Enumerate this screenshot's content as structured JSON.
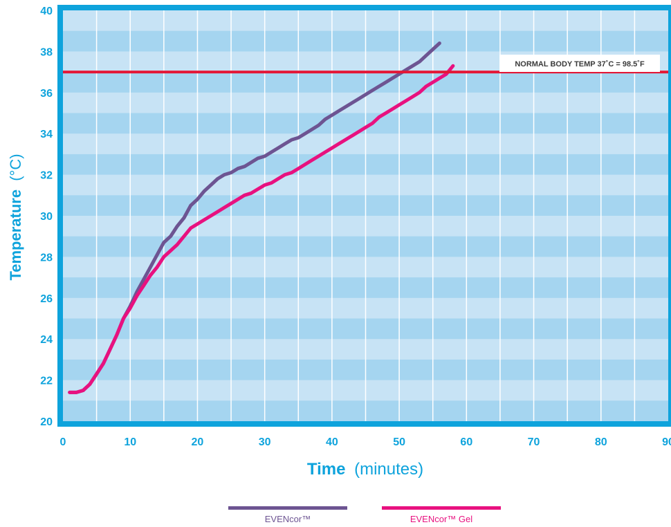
{
  "chart_data": {
    "type": "line",
    "title": "",
    "xlabel_bold": "Time",
    "xlabel_rest": "(minutes)",
    "ylabel_bold": "Temperature",
    "ylabel_rest": "(°C)",
    "xlim": [
      0,
      90
    ],
    "ylim": [
      20,
      40
    ],
    "x_ticks": [
      "0",
      "10",
      "20",
      "30",
      "40",
      "50",
      "60",
      "70",
      "80",
      "90"
    ],
    "y_ticks": [
      "20",
      "22",
      "24",
      "26",
      "28",
      "30",
      "32",
      "34",
      "36",
      "38",
      "40"
    ],
    "grid": true,
    "reference_line": {
      "y": 37,
      "label": "NORMAL BODY TEMP 37˚C = 98.5˚F",
      "color": "#e31837"
    },
    "series": [
      {
        "name": "EVENcor™",
        "color": "#6d5492",
        "x": [
          1,
          2,
          3,
          4,
          5,
          6,
          7,
          8,
          9,
          10,
          11,
          12,
          13,
          14,
          15,
          16,
          17,
          18,
          19,
          20,
          21,
          22,
          23,
          24,
          25,
          26,
          27,
          28,
          29,
          30,
          31,
          32,
          33,
          34,
          35,
          36,
          37,
          38,
          39,
          40,
          41,
          42,
          43,
          44,
          45,
          46,
          47,
          48,
          49,
          50,
          51,
          52,
          53,
          54,
          55,
          56
        ],
        "values": [
          21.4,
          21.4,
          21.5,
          21.8,
          22.3,
          22.8,
          23.5,
          24.2,
          25.0,
          25.6,
          26.3,
          26.9,
          27.5,
          28.1,
          28.7,
          29.0,
          29.5,
          29.9,
          30.5,
          30.8,
          31.2,
          31.5,
          31.8,
          32.0,
          32.1,
          32.3,
          32.4,
          32.6,
          32.8,
          32.9,
          33.1,
          33.3,
          33.5,
          33.7,
          33.8,
          34.0,
          34.2,
          34.4,
          34.7,
          34.9,
          35.1,
          35.3,
          35.5,
          35.7,
          35.9,
          36.1,
          36.3,
          36.5,
          36.7,
          36.9,
          37.1,
          37.3,
          37.5,
          37.8,
          38.1,
          38.4
        ]
      },
      {
        "name": "EVENcor™ Gel",
        "color": "#e8117f",
        "x": [
          1,
          2,
          3,
          4,
          5,
          6,
          7,
          8,
          9,
          10,
          11,
          12,
          13,
          14,
          15,
          16,
          17,
          18,
          19,
          20,
          21,
          22,
          23,
          24,
          25,
          26,
          27,
          28,
          29,
          30,
          31,
          32,
          33,
          34,
          35,
          36,
          37,
          38,
          39,
          40,
          41,
          42,
          43,
          44,
          45,
          46,
          47,
          48,
          49,
          50,
          51,
          52,
          53,
          54,
          55,
          56,
          57,
          58
        ],
        "values": [
          21.4,
          21.4,
          21.5,
          21.8,
          22.3,
          22.8,
          23.5,
          24.2,
          25.0,
          25.5,
          26.1,
          26.6,
          27.1,
          27.5,
          28.0,
          28.3,
          28.6,
          29.0,
          29.4,
          29.6,
          29.8,
          30.0,
          30.2,
          30.4,
          30.6,
          30.8,
          31.0,
          31.1,
          31.3,
          31.5,
          31.6,
          31.8,
          32.0,
          32.1,
          32.3,
          32.5,
          32.7,
          32.9,
          33.1,
          33.3,
          33.5,
          33.7,
          33.9,
          34.1,
          34.3,
          34.5,
          34.8,
          35.0,
          35.2,
          35.4,
          35.6,
          35.8,
          36.0,
          36.3,
          36.5,
          36.7,
          36.9,
          37.3
        ]
      }
    ],
    "legend_position": "bottom-center"
  },
  "colors": {
    "frame": "#0ea3dc",
    "band_light": "#c7e3f5",
    "band_dark": "#a5d5f0",
    "grid_line": "#ffffff",
    "axis_text": "#0ea3dc"
  }
}
